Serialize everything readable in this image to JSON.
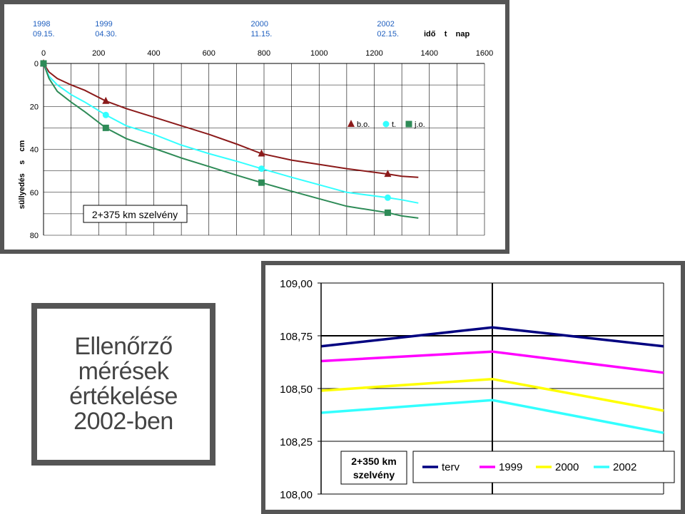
{
  "caption": {
    "lines": [
      "Ellenőrző",
      "mérések",
      "értékelése",
      "2002-ben"
    ]
  },
  "chart_data": [
    {
      "type": "line",
      "title": "2+375 km szelvény",
      "xlabel": "idő t nap",
      "ylabel": "süllyedés s cm",
      "xlim": [
        0,
        1600
      ],
      "ylim": [
        0,
        80
      ],
      "y_inverted": true,
      "x_ticks": [
        0,
        200,
        400,
        600,
        800,
        1000,
        1200,
        1400,
        1600
      ],
      "y_ticks": [
        0,
        20,
        40,
        60,
        80
      ],
      "date_labels": [
        {
          "x": 0,
          "year": "1998",
          "date": "09.15."
        },
        {
          "x": 226,
          "year": "1999",
          "date": "04.30."
        },
        {
          "x": 791,
          "year": "2000",
          "date": "11.15."
        },
        {
          "x": 1249,
          "year": "2002",
          "date": "02.15."
        }
      ],
      "legend_position": "top-right",
      "series": [
        {
          "name": "b.o.",
          "marker": "triangle",
          "color": "#8B1A1A",
          "x": [
            0,
            20,
            50,
            100,
            150,
            226,
            300,
            400,
            500,
            600,
            700,
            791,
            900,
            1000,
            1100,
            1249,
            1300,
            1360
          ],
          "y": [
            0,
            4,
            7,
            10,
            12.5,
            17.5,
            21,
            25,
            29,
            33,
            37.5,
            42,
            45,
            47,
            49,
            51.5,
            52.5,
            53
          ],
          "markers_x": [
            0,
            226,
            791,
            1249
          ],
          "markers_y": [
            0,
            17.5,
            42,
            51.5
          ]
        },
        {
          "name": "t.",
          "marker": "circle",
          "color": "#33FFFF",
          "x": [
            0,
            20,
            50,
            100,
            150,
            226,
            300,
            400,
            500,
            600,
            700,
            791,
            900,
            1000,
            1100,
            1249,
            1300,
            1360
          ],
          "y": [
            0,
            6,
            10,
            14.5,
            18,
            24,
            29,
            33,
            38,
            42,
            45.5,
            49,
            53,
            56.5,
            60,
            62.5,
            63.5,
            65
          ],
          "markers_x": [
            0,
            226,
            791,
            1249
          ],
          "markers_y": [
            0,
            24,
            49,
            62.5
          ]
        },
        {
          "name": "j.o.",
          "marker": "square",
          "color": "#2E8B57",
          "x": [
            0,
            20,
            50,
            100,
            150,
            226,
            300,
            400,
            500,
            600,
            700,
            791,
            900,
            1000,
            1100,
            1249,
            1300,
            1360
          ],
          "y": [
            0,
            7,
            13,
            18,
            22.5,
            30,
            35,
            39.5,
            44,
            48,
            52,
            55.5,
            59.5,
            63,
            66.5,
            69.5,
            71,
            72
          ],
          "markers_x": [
            0,
            226,
            791,
            1249
          ],
          "markers_y": [
            0,
            30,
            55.5,
            69.5
          ]
        }
      ]
    },
    {
      "type": "line",
      "title": "2+350 km szelvény",
      "ylim": [
        108.0,
        109.0
      ],
      "y_ticks": [
        "108,00",
        "108,25",
        "108,50",
        "108,75",
        "109,00"
      ],
      "categories": [
        "",
        "",
        ""
      ],
      "legend_position": "bottom",
      "series": [
        {
          "name": "terv",
          "color": "#000080",
          "values": [
            108.7,
            108.79,
            108.7
          ]
        },
        {
          "name": "1999",
          "color": "#FF00FF",
          "values": [
            108.63,
            108.675,
            108.575
          ]
        },
        {
          "name": "2000",
          "color": "#FFFF00",
          "values": [
            108.49,
            108.545,
            108.395
          ]
        },
        {
          "name": "2002",
          "color": "#33FFFF",
          "values": [
            108.385,
            108.445,
            108.29
          ]
        }
      ]
    }
  ]
}
